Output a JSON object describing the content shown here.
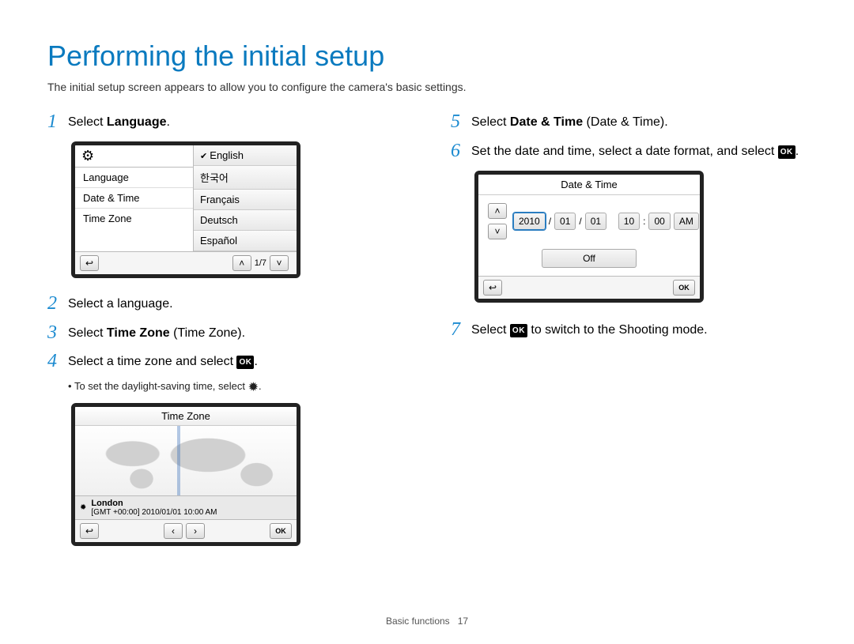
{
  "page": {
    "title": "Performing the initial setup",
    "intro": "The initial setup screen appears to allow you to configure the camera's basic settings.",
    "footer_label": "Basic functions",
    "footer_page": "17"
  },
  "steps": {
    "s1_pre": "Select ",
    "s1_bold": "Language",
    "s1_post": ".",
    "s2": "Select a language.",
    "s3_pre": "Select ",
    "s3_bold": "Time Zone",
    "s3_paren": " (Time Zone).",
    "s4_pre": "Select a time zone and select ",
    "s4_post": ".",
    "s4_bullet": "To set the daylight-saving time, select ",
    "s4_bullet_post": ".",
    "s5_pre": "Select ",
    "s5_bold": "Date & Time",
    "s5_paren": " (Date & Time).",
    "s6_pre": "Set the date and time, select a date format, and select ",
    "s6_post": ".",
    "s7_pre": "Select ",
    "s7_post": " to switch to the Shooting mode."
  },
  "ok_label": "OK",
  "lang_screen": {
    "menu": [
      "Language",
      "Date & Time",
      "Time Zone"
    ],
    "options": [
      "English",
      "한국어",
      "Français",
      "Deutsch",
      "Español"
    ],
    "selected_index": 0,
    "pager": "1/7"
  },
  "tz_screen": {
    "title": "Time Zone",
    "city": "London",
    "detail": "[GMT +00:00] 2010/01/01 10:00 AM",
    "ok": "OK"
  },
  "dt_screen": {
    "title": "Date & Time",
    "year": "2010",
    "mon": "01",
    "day": "01",
    "hour": "10",
    "min": "00",
    "ampm": "AM",
    "sep_date": "/",
    "sep_time": ":",
    "format_state": "Off",
    "ok": "OK"
  },
  "colors": {
    "accent": "#0a7abf",
    "step_num": "#1b8ad0",
    "screen_border": "#222222"
  }
}
